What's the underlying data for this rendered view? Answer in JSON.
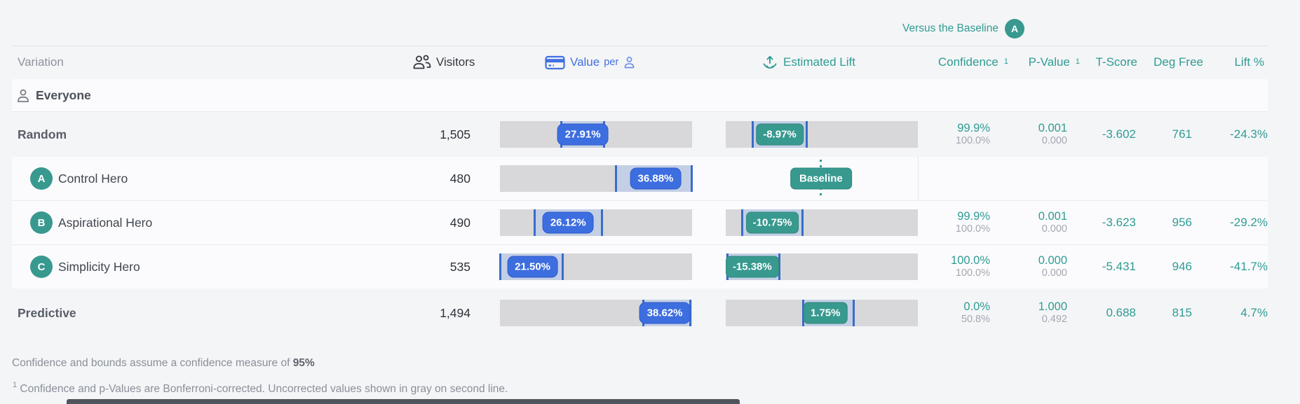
{
  "versus": {
    "label": "Versus the Baseline",
    "badge": "A"
  },
  "header": {
    "variation": "Variation",
    "visitors": "Visitors",
    "value": "Value",
    "per": "per",
    "estimated_lift": "Estimated Lift",
    "confidence": "Confidence",
    "p_value": "P-Value",
    "t_score": "T-Score",
    "deg_free": "Deg Free",
    "lift_pct": "Lift %",
    "note_mark": "1"
  },
  "group": {
    "label": "Everyone"
  },
  "rows": [
    {
      "name": "Random",
      "visitors": "1,505",
      "value": {
        "label": "27.91%",
        "ci": [
          31.8,
          54.4
        ],
        "center": 43.1
      },
      "lift": {
        "label": "-8.97%",
        "ci": [
          13.9,
          42.3
        ],
        "center": 28.1
      },
      "stats": {
        "confidence": "99.9%",
        "confidence_uncorrected": "100.0%",
        "p_value": "0.001",
        "p_value_uncorrected": "0.000",
        "t_score": "-3.602",
        "deg_free": "761",
        "lift_pct": "-24.3%"
      }
    },
    {
      "letter": "A",
      "name": "Control Hero",
      "visitors": "480",
      "value": {
        "label": "36.88%",
        "ci": [
          60.2,
          100
        ],
        "center": 81.0
      },
      "baseline": {
        "label": "Baseline",
        "center": 49.6
      },
      "stats": {}
    },
    {
      "letter": "B",
      "name": "Aspirational Hero",
      "visitors": "490",
      "value": {
        "label": "26.12%",
        "ci": [
          17.9,
          53.3
        ],
        "center": 35.5
      },
      "lift": {
        "label": "-10.75%",
        "ci": [
          8.4,
          40.1
        ],
        "center": 24.3
      },
      "stats": {
        "confidence": "99.9%",
        "confidence_uncorrected": "100.0%",
        "p_value": "0.001",
        "p_value_uncorrected": "0.000",
        "t_score": "-3.623",
        "deg_free": "956",
        "lift_pct": "-29.2%"
      }
    },
    {
      "letter": "C",
      "name": "Simplicity Hero",
      "visitors": "535",
      "value": {
        "label": "21.50%",
        "ci": [
          0,
          32.8
        ],
        "center": 17.0
      },
      "lift": {
        "label": "-15.38%",
        "ci": [
          0.7,
          28.1
        ],
        "center": 13.8
      },
      "stats": {
        "confidence": "100.0%",
        "confidence_uncorrected": "100.0%",
        "p_value": "0.000",
        "p_value_uncorrected": "0.000",
        "t_score": "-5.431",
        "deg_free": "946",
        "lift_pct": "-41.7%"
      }
    },
    {
      "name": "Predictive",
      "visitors": "1,494",
      "value": {
        "label": "38.62%",
        "ci": [
          74.5,
          99.3
        ],
        "center": 85.8
      },
      "lift": {
        "label": "1.75%",
        "ci": [
          40.1,
          66.8
        ],
        "center": 51.9
      },
      "stats": {
        "confidence": "0.0%",
        "confidence_uncorrected": "50.8%",
        "p_value": "1.000",
        "p_value_uncorrected": "0.492",
        "t_score": "0.688",
        "deg_free": "815",
        "lift_pct": "4.7%"
      }
    }
  ],
  "footer": {
    "line1_prefix": "Confidence and bounds assume a confidence measure of ",
    "line1_bold": "95%",
    "note_mark": "1",
    "line2": " Confidence and p-Values are Bonferroni-corrected. Uncorrected values shown in gray on second line."
  },
  "colors": {
    "accent_teal": "#2f9c92",
    "accent_blue": "#3d6ee0",
    "bar_gray": "#d8d8da",
    "ci_fill": "#c3cfe4",
    "ci_line": "#3a6cc9"
  }
}
